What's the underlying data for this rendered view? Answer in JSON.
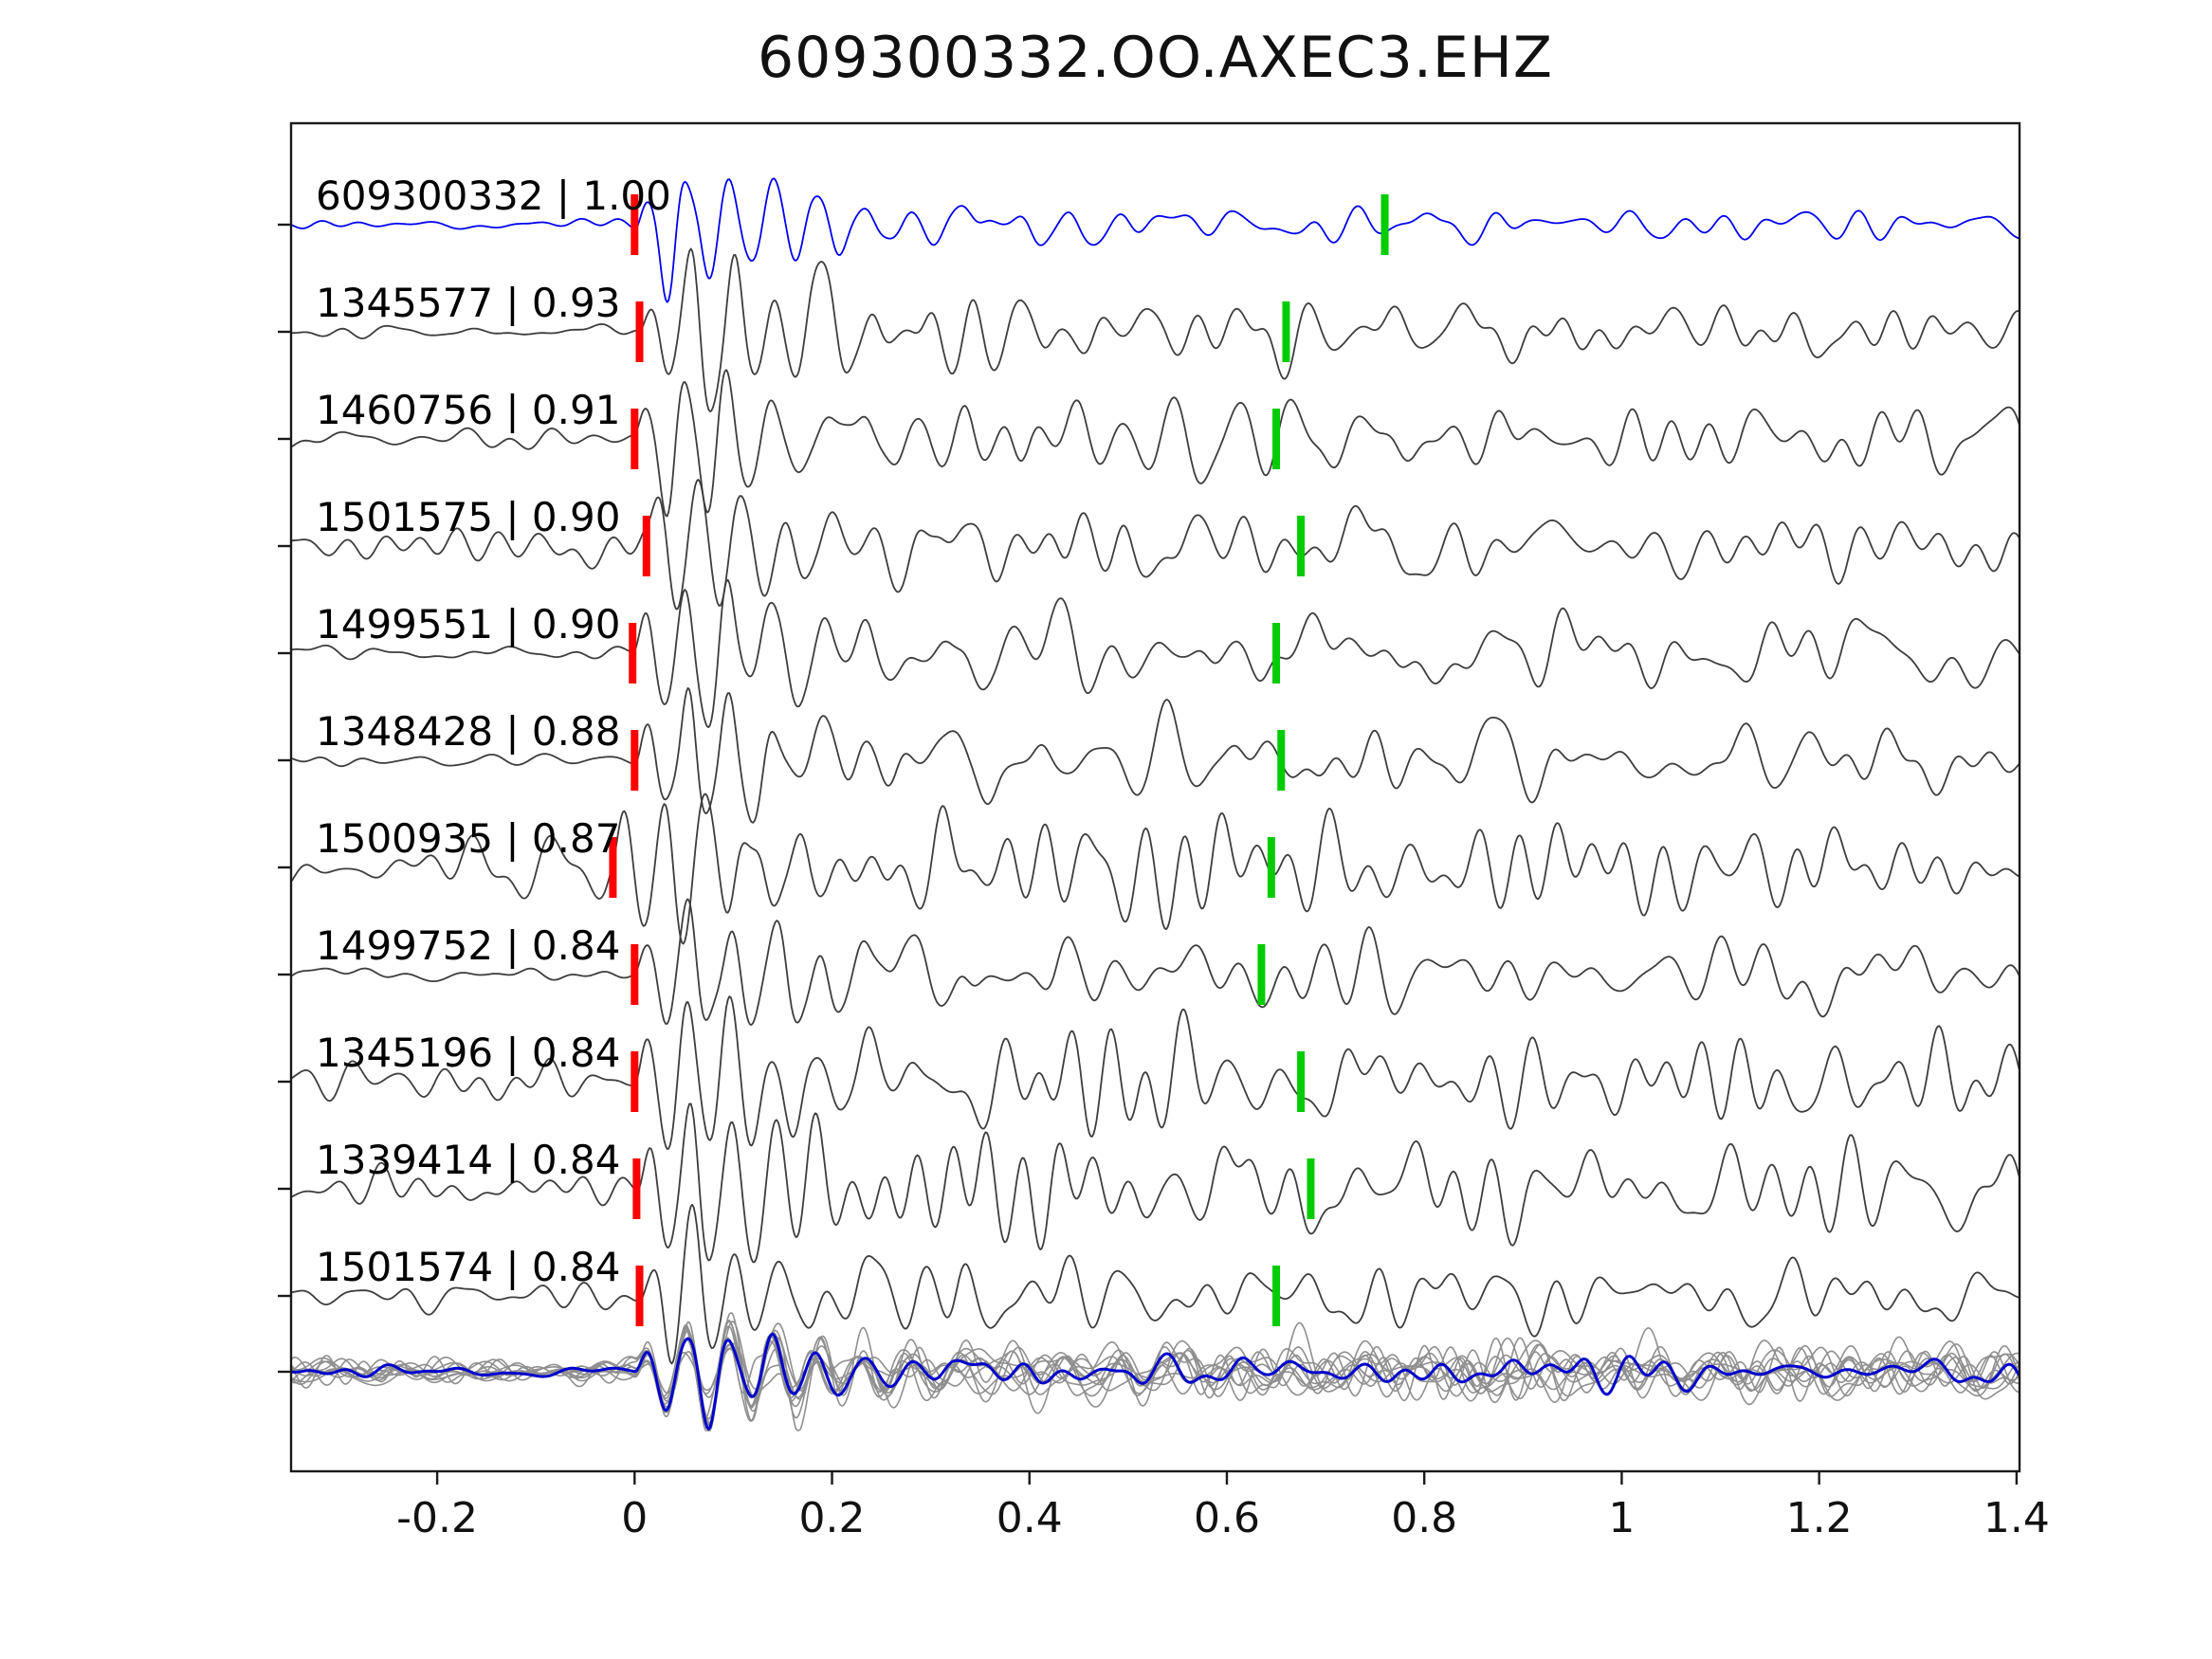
{
  "colors": {
    "template_trace": "#0000ee",
    "match_trace": "#3d3d3d",
    "p_pick": "#ff0000",
    "s_pick": "#00cc00",
    "stack_overlay": "#8f8f8f",
    "stack_mean": "#0000cc",
    "axis": "#1a1a1a",
    "background": "#ffffff"
  },
  "chart_data": {
    "type": "line",
    "title": "609300332.OO.AXEC3.EHZ",
    "xlabel": "",
    "ylabel": "",
    "xlim": [
      -0.348,
      1.403
    ],
    "xticks": [
      -0.2,
      0,
      0.2,
      0.4,
      0.6,
      0.8,
      1,
      1.2,
      1.4
    ],
    "xtick_labels": [
      "-0.2",
      "0",
      "0.2",
      "0.4",
      "0.6",
      "0.8",
      "1",
      "1.2",
      "1.4"
    ],
    "grid": false,
    "legend": false,
    "traces": [
      {
        "id": "609300332",
        "correlation": "1.00",
        "label": "609300332 | 1.00",
        "is_template": true,
        "red_pick": 0.0,
        "green_pick": 0.76,
        "seed": 3,
        "pre": 0.04,
        "tail": 0.12,
        "amp": 0.92
      },
      {
        "id": "1345577",
        "correlation": "0.93",
        "label": "1345577 | 0.93",
        "is_template": false,
        "red_pick": 0.005,
        "green_pick": 0.66,
        "seed": 14,
        "pre": 0.06,
        "tail": 0.3,
        "amp": 1.0
      },
      {
        "id": "1460756",
        "correlation": "0.91",
        "label": "1460756 | 0.91",
        "is_template": false,
        "red_pick": 0.0,
        "green_pick": 0.65,
        "seed": 25,
        "pre": 0.06,
        "tail": 0.3,
        "amp": 1.0
      },
      {
        "id": "1501575",
        "correlation": "0.90",
        "label": "1501575 | 0.90",
        "is_template": false,
        "red_pick": 0.012,
        "green_pick": 0.675,
        "seed": 36,
        "pre": 0.13,
        "tail": 0.3,
        "amp": 0.95
      },
      {
        "id": "1499551",
        "correlation": "0.90",
        "label": "1499551 | 0.90",
        "is_template": false,
        "red_pick": -0.002,
        "green_pick": 0.65,
        "seed": 47,
        "pre": 0.06,
        "tail": 0.3,
        "amp": 0.95
      },
      {
        "id": "1348428",
        "correlation": "0.88",
        "label": "1348428 | 0.88",
        "is_template": false,
        "red_pick": 0.0,
        "green_pick": 0.655,
        "seed": 58,
        "pre": 0.06,
        "tail": 0.3,
        "amp": 0.95
      },
      {
        "id": "1500935",
        "correlation": "0.87",
        "label": "1500935 | 0.87",
        "is_template": false,
        "red_pick": -0.022,
        "green_pick": 0.645,
        "seed": 69,
        "pre": 0.24,
        "tail": 0.34,
        "amp": 1.0
      },
      {
        "id": "1499752",
        "correlation": "0.84",
        "label": "1499752 | 0.84",
        "is_template": false,
        "red_pick": 0.0,
        "green_pick": 0.635,
        "seed": 80,
        "pre": 0.07,
        "tail": 0.3,
        "amp": 0.9
      },
      {
        "id": "1345196",
        "correlation": "0.84",
        "label": "1345196 | 0.84",
        "is_template": false,
        "red_pick": 0.0,
        "green_pick": 0.675,
        "seed": 91,
        "pre": 0.16,
        "tail": 0.33,
        "amp": 1.0
      },
      {
        "id": "1339414",
        "correlation": "0.84",
        "label": "1339414 | 0.84",
        "is_template": false,
        "red_pick": 0.002,
        "green_pick": 0.685,
        "seed": 102,
        "pre": 0.13,
        "tail": 0.38,
        "amp": 1.05
      },
      {
        "id": "1501574",
        "correlation": "0.84",
        "label": "1501574 | 0.84",
        "is_template": false,
        "red_pick": 0.005,
        "green_pick": 0.65,
        "seed": 113,
        "pre": 0.11,
        "tail": 0.3,
        "amp": 0.95
      }
    ],
    "stack": {
      "n_overlays": 10,
      "has_mean_trace": true
    }
  }
}
